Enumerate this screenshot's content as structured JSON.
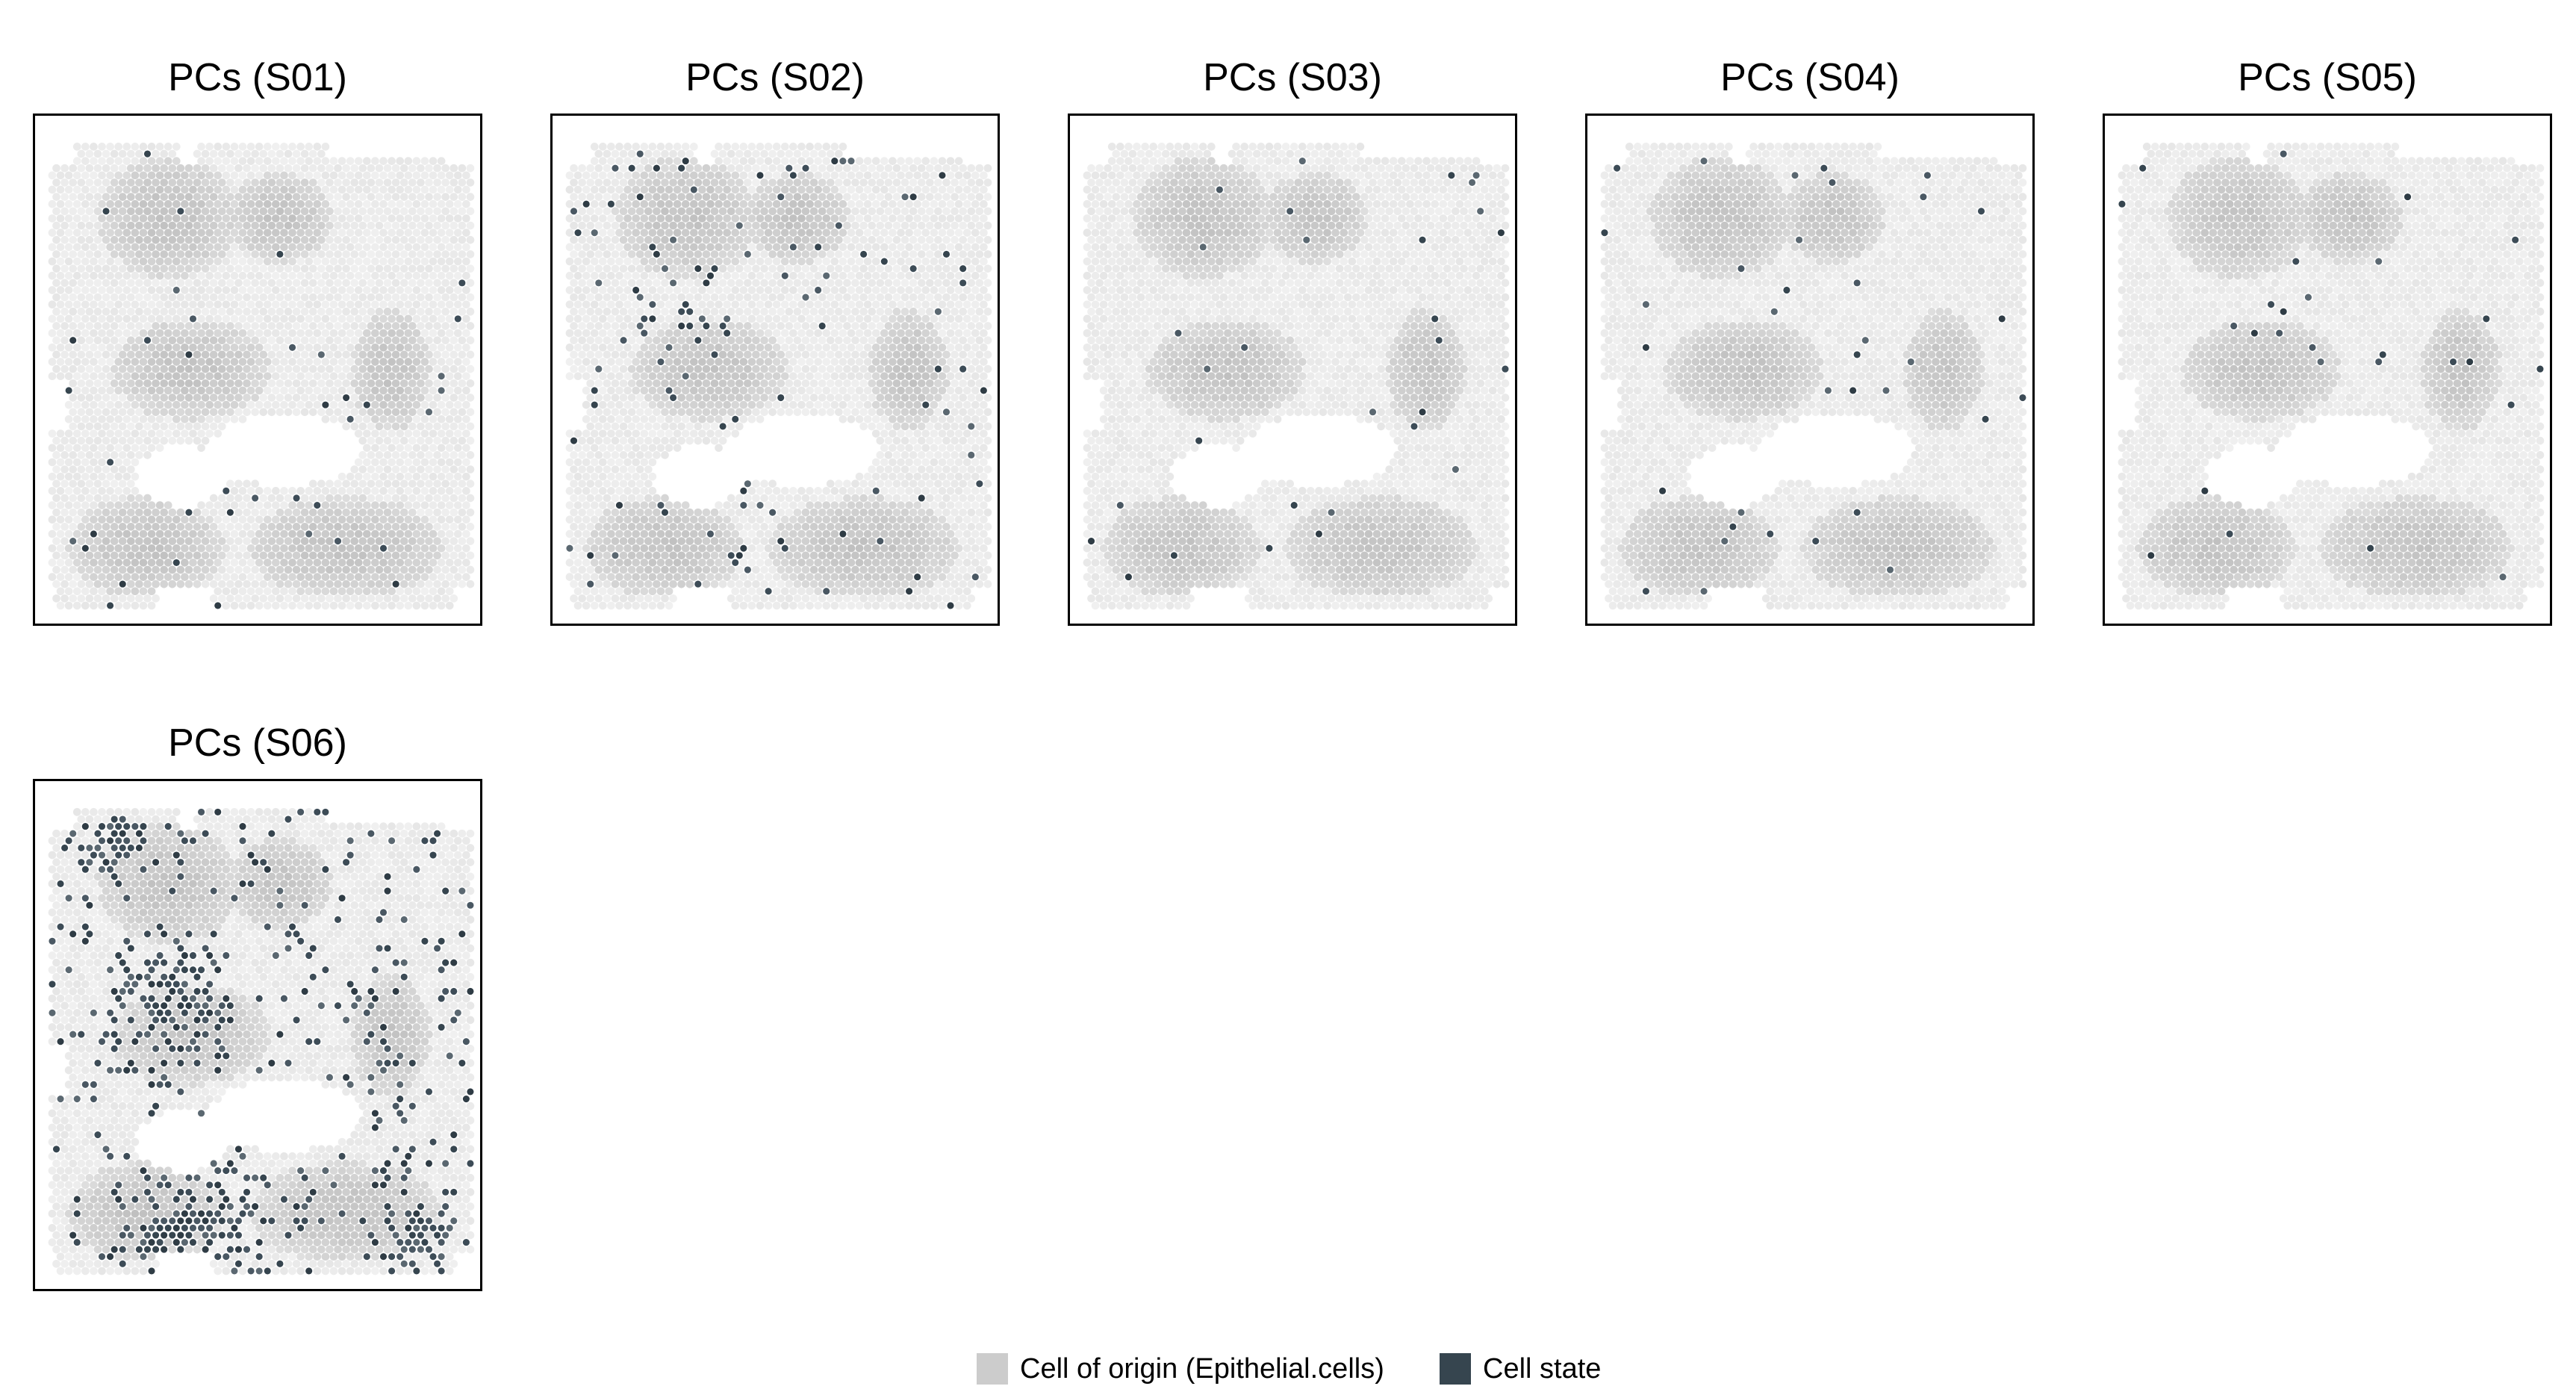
{
  "chart_data": {
    "type": "scatter",
    "description_free": true,
    "legend": {
      "placement": "bottom",
      "items": [
        {
          "label": "Cell of origin (Epithelial.cells)",
          "color": "#cccccc"
        },
        {
          "label": "Cell state",
          "color": "#36454f"
        }
      ]
    },
    "panels": [
      {
        "title": "PCs (S01)",
        "state_density": 0.035,
        "clusters": [
          [
            0.07,
            0.57,
            0.06
          ],
          [
            0.35,
            0.3,
            0.07
          ],
          [
            0.88,
            0.55,
            0.09
          ],
          [
            0.68,
            0.58,
            0.07
          ]
        ]
      },
      {
        "title": "PCs (S02)",
        "state_density": 0.085,
        "clusters": [
          [
            0.28,
            0.4,
            0.14
          ],
          [
            0.1,
            0.2,
            0.08
          ],
          [
            0.7,
            0.25,
            0.06
          ],
          [
            0.45,
            0.85,
            0.1
          ]
        ]
      },
      {
        "title": "PCs (S03)",
        "state_density": 0.03,
        "clusters": []
      },
      {
        "title": "PCs (S04)",
        "state_density": 0.035,
        "clusters": [
          [
            0.5,
            0.12,
            0.05
          ]
        ]
      },
      {
        "title": "PCs (S05)",
        "state_density": 0.03,
        "clusters": [
          [
            0.62,
            0.25,
            0.06
          ]
        ]
      },
      {
        "title": "PCs (S06)",
        "state_density": 0.3,
        "clusters": [
          [
            0.3,
            0.45,
            0.17
          ],
          [
            0.35,
            0.88,
            0.2
          ],
          [
            0.85,
            0.88,
            0.1
          ],
          [
            0.18,
            0.12,
            0.1
          ]
        ]
      }
    ]
  },
  "colors": {
    "origin": "#cccccc",
    "state": "#36454f",
    "background": "#ffffff"
  }
}
